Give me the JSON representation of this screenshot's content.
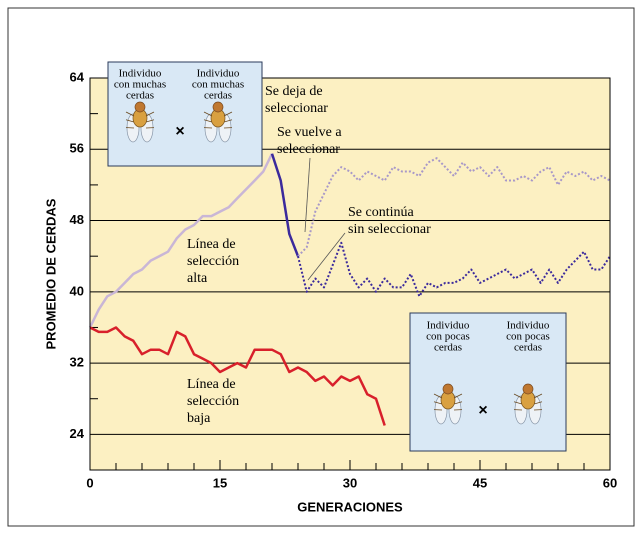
{
  "chart_data": {
    "type": "line",
    "ylabel": "PROMEDIO DE CERDAS",
    "xlabel": "GENERACIONES",
    "xlim": [
      0,
      60
    ],
    "ylim": [
      20,
      64
    ],
    "xticks": [
      0,
      15,
      30,
      45,
      60
    ],
    "yticks": [
      24,
      32,
      40,
      48,
      56,
      64
    ],
    "xminor_ticks": [
      3,
      6,
      9,
      12,
      18,
      21,
      24,
      27,
      33,
      36,
      39,
      42,
      48,
      51,
      54,
      57
    ],
    "yminor_ticks": [
      28,
      36,
      44,
      52,
      60
    ],
    "grid": true,
    "series": [
      {
        "color": "#c9b6d6",
        "linestyle": "solid",
        "x": [
          0,
          1,
          2,
          3,
          4,
          5,
          6,
          7,
          8,
          9,
          10,
          11,
          12,
          13,
          14,
          15,
          16,
          17,
          18,
          19,
          20,
          21
        ],
        "values": [
          36,
          38,
          39.5,
          40,
          41,
          42,
          42.5,
          43.5,
          44,
          44.5,
          46,
          47,
          47.5,
          48.5,
          48.5,
          49,
          49.5,
          50.5,
          51.5,
          52.5,
          53.5,
          55.5
        ]
      },
      {
        "color": "#3b2a9c",
        "linestyle": "solid",
        "x": [
          21,
          22,
          23,
          24
        ],
        "values": [
          55.5,
          52.5,
          46.5,
          44
        ]
      },
      {
        "color": "#a898c8",
        "linestyle": "dotted",
        "x": [
          24,
          25,
          26,
          27,
          28,
          29,
          30,
          31,
          32,
          33,
          34,
          35,
          36,
          37,
          38,
          39,
          40,
          41,
          42,
          43,
          44,
          45,
          46,
          47,
          48,
          49,
          50,
          51,
          52,
          53,
          54,
          55,
          56,
          57,
          58,
          59,
          60
        ],
        "values": [
          44,
          45,
          49,
          51,
          53,
          54,
          53.5,
          52.5,
          53.5,
          53,
          52.5,
          54,
          53.5,
          53.5,
          53,
          54.5,
          55,
          54,
          53,
          54.5,
          53.5,
          54,
          53,
          54,
          52.5,
          52.5,
          53,
          52.5,
          53.5,
          54,
          52,
          53.5,
          53,
          53.5,
          52.5,
          53,
          52.5
        ]
      },
      {
        "color": "#3b2a9c",
        "linestyle": "dotted",
        "x": [
          24,
          25,
          26,
          27,
          28,
          29,
          30,
          31,
          32,
          33,
          34,
          35,
          36,
          37,
          38,
          39,
          40,
          41,
          42,
          43,
          44,
          45,
          46,
          47,
          48,
          49,
          50,
          51,
          52,
          53,
          54,
          55,
          56,
          57,
          58,
          59,
          60
        ],
        "values": [
          44,
          40,
          41.5,
          40.5,
          43,
          45.5,
          42,
          40.5,
          41.5,
          40,
          41.5,
          40.5,
          40.5,
          42,
          39.5,
          41,
          40.5,
          41,
          41,
          41.5,
          42.5,
          41,
          41.5,
          42,
          42.5,
          41.5,
          42,
          42.5,
          41,
          42.5,
          41,
          42.5,
          43.5,
          44.5,
          42.5,
          42.5,
          44
        ]
      },
      {
        "color": "#d8202b",
        "linestyle": "solid",
        "x": [
          0,
          1,
          2,
          3,
          4,
          5,
          6,
          7,
          8,
          9,
          10,
          11,
          12,
          13,
          14,
          15,
          16,
          17,
          18,
          19,
          20,
          21,
          22,
          23,
          24,
          25,
          26,
          27,
          28,
          29,
          30,
          31,
          32,
          33,
          34
        ],
        "values": [
          36,
          35.5,
          35.5,
          36,
          35,
          34.5,
          33,
          33.5,
          33.5,
          33,
          35.5,
          35,
          33,
          32.5,
          32,
          31,
          31.5,
          32,
          31.5,
          33.5,
          33.5,
          33.5,
          33,
          31,
          31.5,
          31,
          30,
          30.5,
          29.5,
          30.5,
          30,
          30.5,
          28.5,
          28,
          25
        ]
      }
    ],
    "annotations": [
      {
        "lines": [
          "Línea de",
          "selección",
          "alta"
        ]
      },
      {
        "lines": [
          "Línea de",
          "selección",
          "baja"
        ]
      },
      {
        "lines": [
          "Se deja de",
          "seleccionar"
        ]
      },
      {
        "lines": [
          "Se vuelve a",
          "seleccionar"
        ]
      },
      {
        "lines": [
          "Se continúa",
          "sin seleccionar"
        ]
      }
    ],
    "callouts": [
      {
        "individuals": [
          [
            "Individuo",
            "con muchas",
            "cerdas"
          ],
          [
            "Individuo",
            "con muchas",
            "cerdas"
          ]
        ],
        "cross": "×"
      },
      {
        "individuals": [
          [
            "Individuo",
            "con pocas",
            "cerdas"
          ],
          [
            "Individuo",
            "con pocas",
            "cerdas"
          ]
        ],
        "cross": "×"
      }
    ]
  }
}
